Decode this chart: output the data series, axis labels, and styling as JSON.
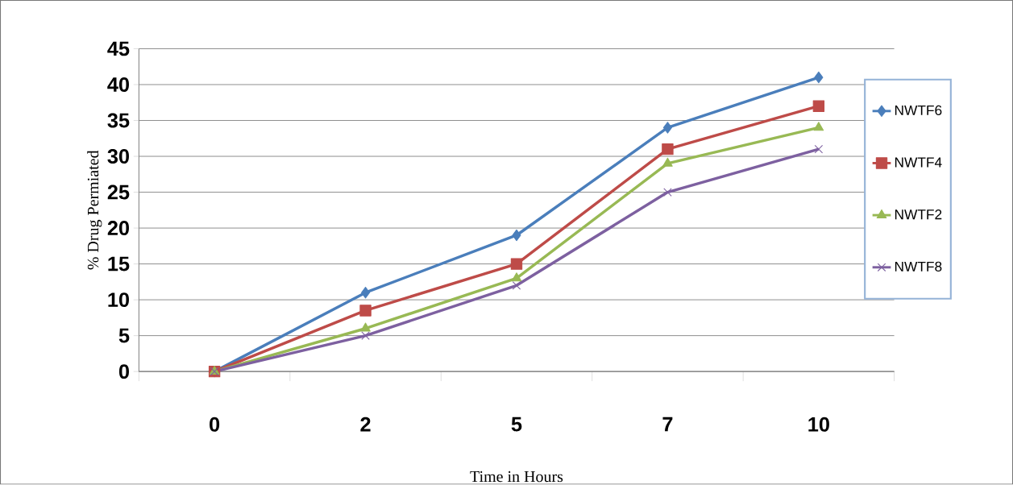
{
  "chart_data": {
    "type": "line",
    "xlabel": "Time in Hours",
    "ylabel": "% Drug Permiated",
    "categories": [
      "0",
      "2",
      "5",
      "7",
      "10"
    ],
    "series": [
      {
        "name": "NWTF6",
        "color": "#4a7ebb",
        "marker": "diamond",
        "values": [
          0,
          11,
          19,
          34,
          41
        ]
      },
      {
        "name": "NWTF4",
        "color": "#be4b48",
        "marker": "square",
        "values": [
          0,
          8.5,
          15,
          31,
          37
        ]
      },
      {
        "name": "NWTF2",
        "color": "#98b954",
        "marker": "triangle",
        "values": [
          0,
          6,
          13,
          29,
          34
        ]
      },
      {
        "name": "NWTF8",
        "color": "#7d60a0",
        "marker": "cross",
        "values": [
          0,
          5,
          12,
          25,
          31
        ]
      }
    ],
    "ylim": [
      0,
      45
    ],
    "yticks": [
      0,
      5,
      10,
      15,
      20,
      25,
      30,
      35,
      40,
      45
    ],
    "grid": "y",
    "legend": "right",
    "line_style": "solid"
  }
}
